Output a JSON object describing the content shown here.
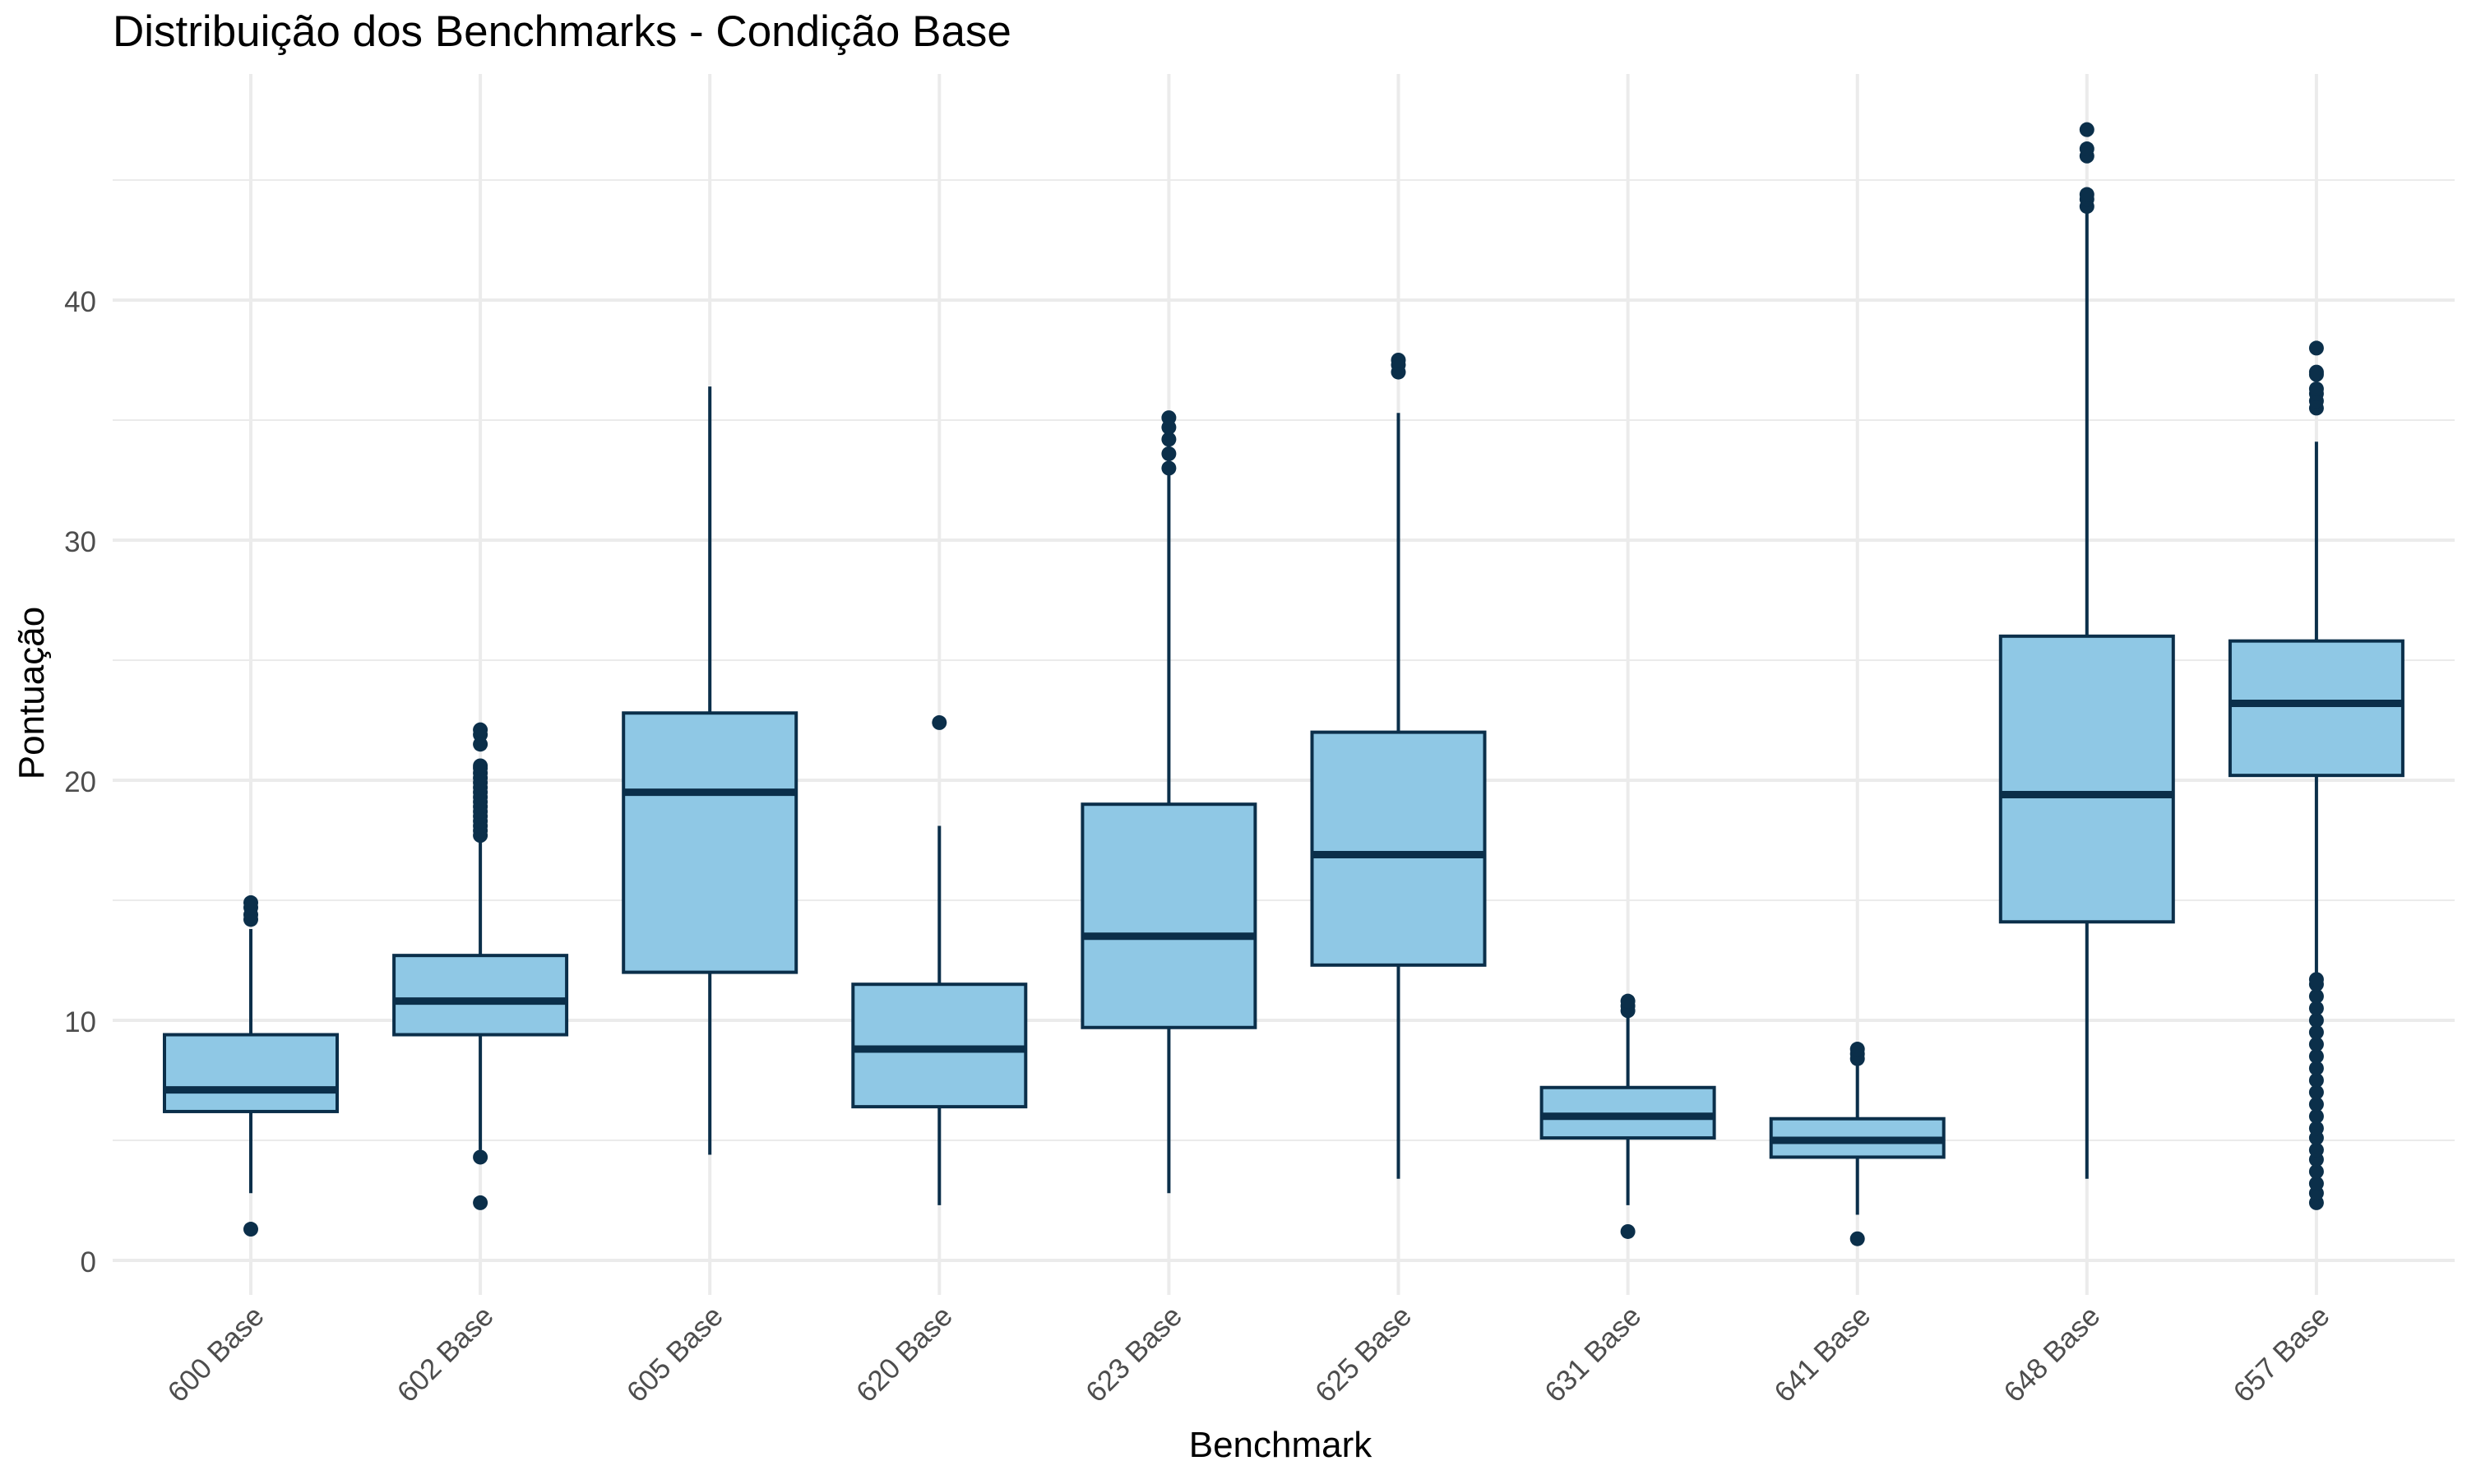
{
  "chart_data": {
    "type": "boxplot",
    "title": "Distribuição dos Benchmarks - Condição Base",
    "xlabel": "Benchmark",
    "ylabel": "Pontuação",
    "ylim": [
      -2,
      50
    ],
    "yticks": [
      0,
      10,
      20,
      30,
      40
    ],
    "grid": true,
    "legend": "none",
    "colors": {
      "box_fill": "#8fc8e5",
      "stroke": "#0b2f4a",
      "grid": "#ebebeb",
      "text": "#4d4d4d"
    },
    "categories": [
      "600 Base",
      "602 Base",
      "605 Base",
      "620 Base",
      "623 Base",
      "625 Base",
      "631 Base",
      "641 Base",
      "648 Base",
      "657 Base"
    ],
    "boxes": [
      {
        "lower_whisker": 2.8,
        "q1": 6.2,
        "median": 7.1,
        "q3": 9.4,
        "upper_whisker": 13.8,
        "outliers": [
          1.3,
          14.2,
          14.4,
          14.7,
          14.9
        ]
      },
      {
        "lower_whisker": 4.6,
        "q1": 9.4,
        "median": 10.8,
        "q3": 12.7,
        "upper_whisker": 17.6,
        "outliers": [
          2.4,
          4.3,
          17.7,
          17.9,
          18.1,
          18.3,
          18.5,
          18.7,
          18.9,
          19.1,
          19.3,
          19.5,
          19.7,
          19.9,
          20.1,
          20.3,
          20.5,
          20.6,
          21.5,
          21.9,
          22.1
        ]
      },
      {
        "lower_whisker": 4.4,
        "q1": 12.0,
        "median": 19.5,
        "q3": 22.8,
        "upper_whisker": 36.4,
        "outliers": []
      },
      {
        "lower_whisker": 2.3,
        "q1": 6.4,
        "median": 8.8,
        "q3": 11.5,
        "upper_whisker": 18.1,
        "outliers": [
          22.4
        ]
      },
      {
        "lower_whisker": 2.8,
        "q1": 9.7,
        "median": 13.5,
        "q3": 19.0,
        "upper_whisker": 32.8,
        "outliers": [
          33.0,
          33.6,
          34.2,
          34.7,
          35.1
        ]
      },
      {
        "lower_whisker": 3.4,
        "q1": 12.3,
        "median": 16.9,
        "q3": 22.0,
        "upper_whisker": 35.3,
        "outliers": [
          37.0,
          37.3,
          37.5
        ]
      },
      {
        "lower_whisker": 2.3,
        "q1": 5.1,
        "median": 6.0,
        "q3": 7.2,
        "upper_whisker": 10.2,
        "outliers": [
          1.2,
          10.4,
          10.6,
          10.8
        ]
      },
      {
        "lower_whisker": 1.9,
        "q1": 4.3,
        "median": 5.0,
        "q3": 5.9,
        "upper_whisker": 8.2,
        "outliers": [
          0.9,
          8.4,
          8.6,
          8.8
        ]
      },
      {
        "lower_whisker": 3.4,
        "q1": 14.1,
        "median": 19.4,
        "q3": 26.0,
        "upper_whisker": 43.7,
        "outliers": [
          43.9,
          44.2,
          44.4,
          46.0,
          46.3,
          47.1
        ]
      },
      {
        "lower_whisker": 12.0,
        "q1": 20.2,
        "median": 23.2,
        "q3": 25.8,
        "upper_whisker": 34.1,
        "outliers": [
          2.4,
          2.8,
          3.2,
          3.7,
          4.2,
          4.6,
          5.1,
          5.5,
          6.0,
          6.5,
          7.0,
          7.5,
          8.0,
          8.5,
          9.0,
          9.5,
          10.0,
          10.5,
          11.0,
          11.5,
          11.7,
          35.5,
          35.8,
          36.1,
          36.3,
          36.9,
          37.0,
          38.0
        ]
      }
    ]
  }
}
